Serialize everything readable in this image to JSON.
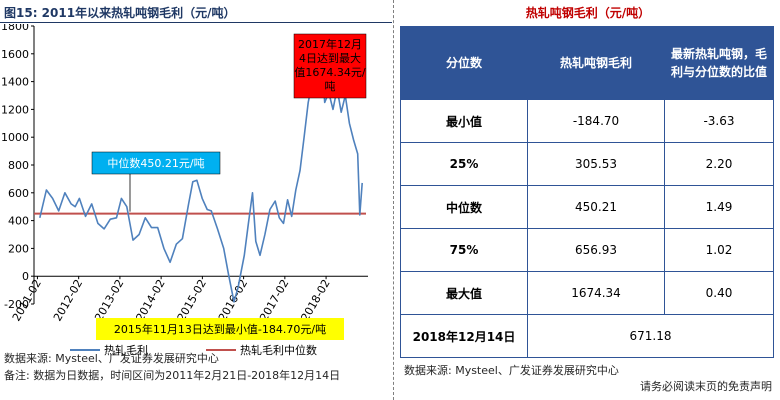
{
  "figure": {
    "title": "图15:  2011年以来热轧吨钢毛利（元/吨）",
    "source": "数据来源:  Mysteel、广发证券发展研究中心",
    "note": "备注:  数据为日数据，时间区间为2011年2月21日-2018年12月14日"
  },
  "chart_data": {
    "type": "line",
    "title": "",
    "xlabel": "",
    "ylabel": "",
    "ylim": [
      -200,
      1800
    ],
    "yticks": [
      -200,
      0,
      200,
      400,
      600,
      800,
      1000,
      1200,
      1400,
      1600,
      1800
    ],
    "xticks": [
      "2011-02",
      "2012-02",
      "2013-02",
      "2014-02",
      "2015-02",
      "2016-02",
      "2017-02",
      "2018-02"
    ],
    "grid": false,
    "legend_position": "bottom",
    "series": [
      {
        "name": "热轧毛利",
        "color": "#4f81bd",
        "points": [
          [
            2011.14,
            420
          ],
          [
            2011.3,
            620
          ],
          [
            2011.45,
            560
          ],
          [
            2011.6,
            470
          ],
          [
            2011.75,
            600
          ],
          [
            2011.9,
            520
          ],
          [
            2012.0,
            500
          ],
          [
            2012.1,
            560
          ],
          [
            2012.25,
            430
          ],
          [
            2012.4,
            520
          ],
          [
            2012.55,
            380
          ],
          [
            2012.7,
            340
          ],
          [
            2012.85,
            410
          ],
          [
            2013.0,
            420
          ],
          [
            2013.12,
            560
          ],
          [
            2013.25,
            500
          ],
          [
            2013.4,
            260
          ],
          [
            2013.55,
            300
          ],
          [
            2013.7,
            420
          ],
          [
            2013.85,
            350
          ],
          [
            2014.0,
            350
          ],
          [
            2014.15,
            200
          ],
          [
            2014.3,
            100
          ],
          [
            2014.45,
            230
          ],
          [
            2014.6,
            270
          ],
          [
            2014.75,
            520
          ],
          [
            2014.85,
            680
          ],
          [
            2014.95,
            690
          ],
          [
            2015.08,
            560
          ],
          [
            2015.2,
            480
          ],
          [
            2015.3,
            470
          ],
          [
            2015.45,
            340
          ],
          [
            2015.6,
            200
          ],
          [
            2015.72,
            10
          ],
          [
            2015.85,
            -185
          ],
          [
            2015.95,
            -80
          ],
          [
            2016.1,
            150
          ],
          [
            2016.2,
            380
          ],
          [
            2016.3,
            600
          ],
          [
            2016.38,
            250
          ],
          [
            2016.48,
            150
          ],
          [
            2016.6,
            300
          ],
          [
            2016.72,
            480
          ],
          [
            2016.85,
            540
          ],
          [
            2016.95,
            420
          ],
          [
            2017.05,
            380
          ],
          [
            2017.15,
            550
          ],
          [
            2017.25,
            430
          ],
          [
            2017.35,
            620
          ],
          [
            2017.45,
            760
          ],
          [
            2017.55,
            1000
          ],
          [
            2017.65,
            1250
          ],
          [
            2017.75,
            1400
          ],
          [
            2017.85,
            1600
          ],
          [
            2017.95,
            1674
          ],
          [
            2018.05,
            1250
          ],
          [
            2018.15,
            1320
          ],
          [
            2018.25,
            1200
          ],
          [
            2018.35,
            1350
          ],
          [
            2018.45,
            1180
          ],
          [
            2018.55,
            1300
          ],
          [
            2018.65,
            1100
          ],
          [
            2018.75,
            980
          ],
          [
            2018.85,
            880
          ],
          [
            2018.9,
            440
          ],
          [
            2018.96,
            671
          ]
        ]
      },
      {
        "name": "热轧毛利中位数",
        "color": "#c0504d",
        "value": 450.21
      }
    ],
    "annotations": [
      {
        "text": "中位数450.21元/吨",
        "box": "cyan"
      },
      {
        "text": "2017年12月4日达到最大值1674.34元/吨",
        "box": "red"
      },
      {
        "text": "2015年11月13日达到最小值-184.70元/吨",
        "box": "yellow"
      }
    ]
  },
  "table": {
    "title": "热轧吨钢毛利（元/吨）",
    "headers": [
      "分位数",
      "热轧吨钢毛利",
      "最新热轧吨钢，毛利与分位数的比值"
    ],
    "rows": [
      [
        "最小值",
        "-184.70",
        "-3.63"
      ],
      [
        "25%",
        "305.53",
        "2.20"
      ],
      [
        "中位数",
        "450.21",
        "1.49"
      ],
      [
        "75%",
        "656.93",
        "1.02"
      ],
      [
        "最大值",
        "1674.34",
        "0.40"
      ]
    ],
    "latest_label": "2018年12月14日",
    "latest_value": "671.18",
    "source": "数据来源:  Mysteel、广发证券发展研究中心",
    "disclaimer": "请务必阅读末页的免责声明"
  }
}
